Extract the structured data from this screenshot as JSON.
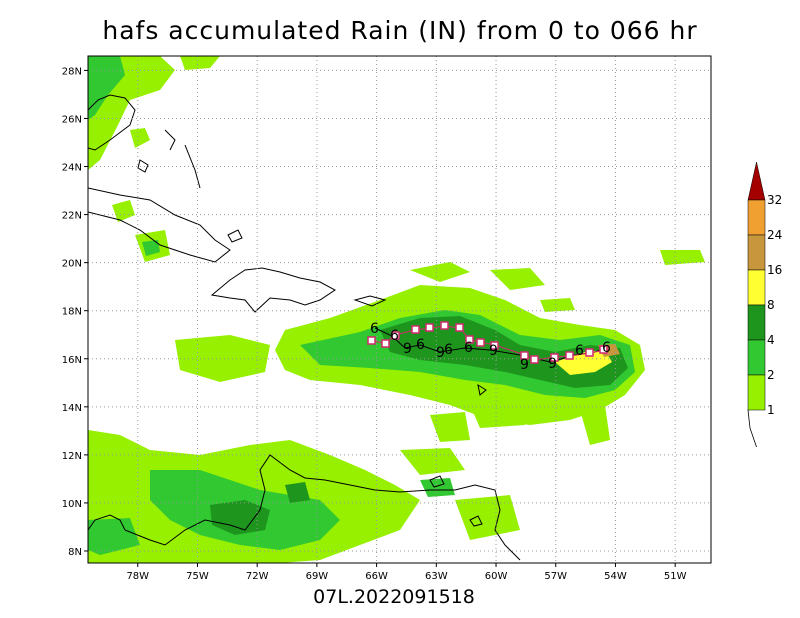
{
  "title": "hafs accumulated Rain (IN) from 0 to 066 hr",
  "footer": "07L.2022091518",
  "map": {
    "lat_labels": [
      "28N",
      "26N",
      "24N",
      "22N",
      "20N",
      "18N",
      "16N",
      "14N",
      "12N",
      "10N",
      "8N"
    ],
    "lon_labels": [
      "78W",
      "75W",
      "72W",
      "69W",
      "66W",
      "63W",
      "60W",
      "57W",
      "54W",
      "51W"
    ],
    "lat_range": [
      7.5,
      28.6
    ],
    "lon_range": [
      -80.5,
      -49.2
    ],
    "grid": "dotted"
  },
  "colorbar": {
    "ticks": [
      "32",
      "24",
      "16",
      "8",
      "4",
      "2",
      "1"
    ],
    "colors": [
      "#a50000",
      "#f0a030",
      "#c8963c",
      "#ffff32",
      "#1e961e",
      "#32c832",
      "#96f000"
    ]
  },
  "track": {
    "storm_symbol": "tropical-storm-symbol",
    "colors": {
      "observed": "#000000",
      "forecast": "#d2286e"
    }
  }
}
